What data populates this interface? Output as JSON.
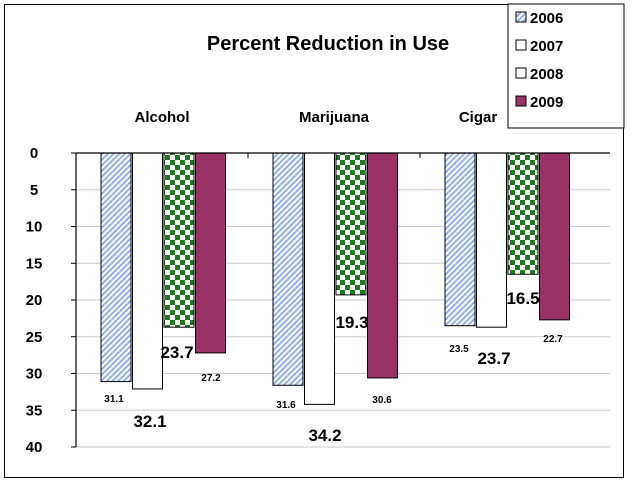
{
  "chart_data": {
    "type": "bar",
    "title": "Percent Reduction in Use",
    "categories": [
      "Alcohol",
      "Marijuana",
      "Cigar"
    ],
    "series": [
      {
        "name": "2006",
        "values": [
          31.1,
          31.6,
          23.5
        ],
        "pattern": "diagonal-hatch",
        "color": "#8fb0ea"
      },
      {
        "name": "2007",
        "values": [
          32.1,
          34.2,
          23.7
        ],
        "pattern": "solid",
        "color": "#ffffff"
      },
      {
        "name": "2008",
        "values": [
          23.7,
          19.3,
          16.5
        ],
        "pattern": "checker",
        "color": "#1f7a1f"
      },
      {
        "name": "2009",
        "values": [
          27.2,
          30.6,
          22.7
        ],
        "pattern": "solid",
        "color": "#993366"
      }
    ],
    "yaxis": {
      "min": 0,
      "max": 40,
      "step": 5,
      "inverted": true
    },
    "ticks": [
      "0",
      "5",
      "10",
      "15",
      "20",
      "25",
      "30",
      "35",
      "40"
    ],
    "data_labels": [
      [
        "31.1",
        "32.1",
        "23.7",
        "27.2"
      ],
      [
        "31.6",
        "34.2",
        "19.3",
        "30.6"
      ],
      [
        "23.5",
        "23.7",
        "16.5",
        "22.7"
      ]
    ],
    "legend_placement": "top-right",
    "grid": true
  }
}
